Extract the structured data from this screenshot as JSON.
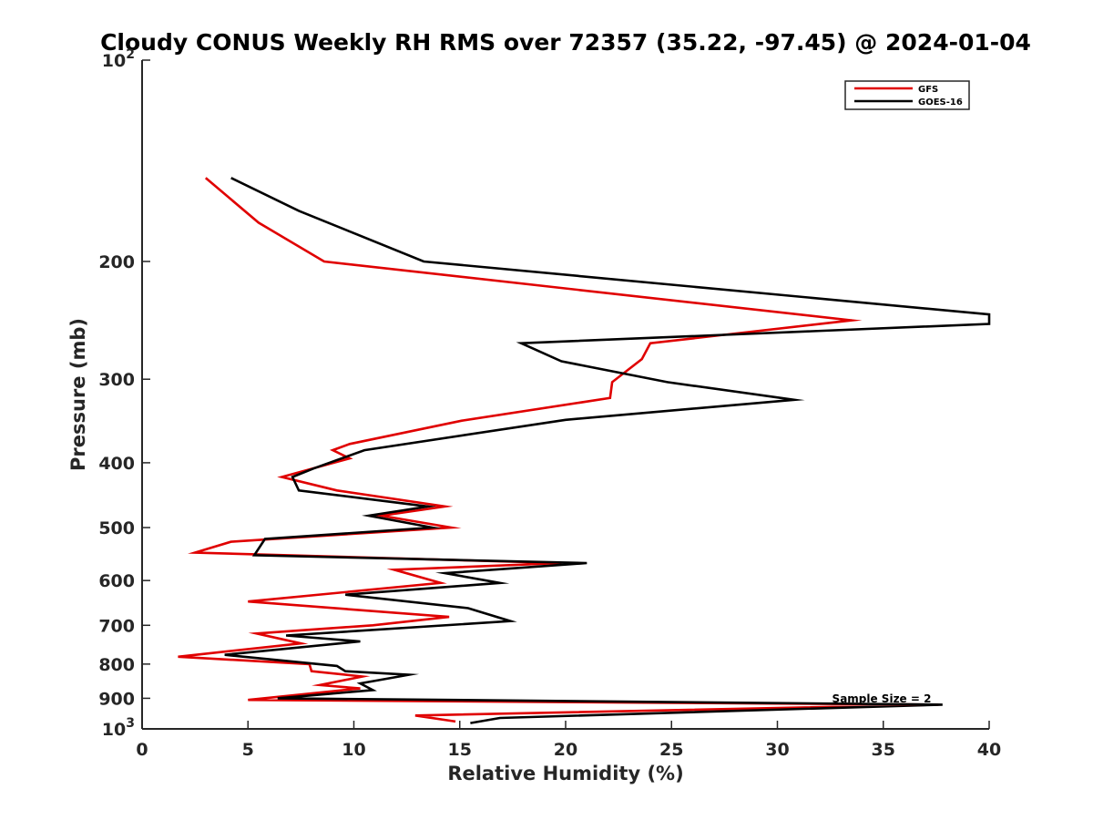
{
  "chart_data": {
    "type": "line",
    "title": "Cloudy CONUS Weekly RH RMS over 72357 (35.22, -97.45) @ 2024-01-04",
    "xlabel": "Relative Humidity (%)",
    "ylabel": "Pressure (mb)",
    "xlim": [
      0,
      40
    ],
    "ylim": [
      100,
      1000
    ],
    "y_scale": "log",
    "y_reversed": true,
    "grid": false,
    "legend_position": "top-right",
    "x_ticks": [
      "0",
      "5",
      "10",
      "15",
      "20",
      "25",
      "30",
      "35",
      "40"
    ],
    "y_ticks": [
      {
        "value": 100,
        "base": "10",
        "exp": "2"
      },
      {
        "value": 200,
        "label": "200"
      },
      {
        "value": 300,
        "label": "300"
      },
      {
        "value": 400,
        "label": "400"
      },
      {
        "value": 500,
        "label": "500"
      },
      {
        "value": 600,
        "label": "600"
      },
      {
        "value": 700,
        "label": "700"
      },
      {
        "value": 800,
        "label": "800"
      },
      {
        "value": 900,
        "label": "900"
      },
      {
        "value": 1000,
        "base": "10",
        "exp": "3"
      }
    ],
    "annotation": "Sample Size = 2",
    "series": [
      {
        "name": "GFS",
        "color": "#e00000",
        "points": [
          [
            3.0,
            150
          ],
          [
            5.5,
            175
          ],
          [
            8.6,
            200
          ],
          [
            33.5,
            245
          ],
          [
            24.0,
            265
          ],
          [
            23.6,
            280
          ],
          [
            22.2,
            303
          ],
          [
            22.1,
            320
          ],
          [
            15.1,
            346
          ],
          [
            9.8,
            375
          ],
          [
            9.0,
            383
          ],
          [
            9.8,
            394
          ],
          [
            6.6,
            420
          ],
          [
            9.2,
            440
          ],
          [
            14.3,
            465
          ],
          [
            11.3,
            480
          ],
          [
            14.6,
            500
          ],
          [
            4.2,
            525
          ],
          [
            2.5,
            545
          ],
          [
            19.8,
            565
          ],
          [
            11.9,
            578
          ],
          [
            14.1,
            605
          ],
          [
            5.0,
            645
          ],
          [
            14.5,
            680
          ],
          [
            10.9,
            700
          ],
          [
            5.4,
            720
          ],
          [
            7.5,
            745
          ],
          [
            1.7,
            780
          ],
          [
            7.9,
            800
          ],
          [
            8.0,
            820
          ],
          [
            10.4,
            835
          ],
          [
            8.4,
            860
          ],
          [
            10.3,
            870
          ],
          [
            5.0,
            905
          ],
          [
            37.6,
            920
          ],
          [
            12.9,
            955
          ],
          [
            14.8,
            975
          ]
        ]
      },
      {
        "name": "GOES-16",
        "color": "#000000",
        "points": [
          [
            4.2,
            150
          ],
          [
            7.4,
            168
          ],
          [
            13.3,
            200
          ],
          [
            40.0,
            240
          ],
          [
            40.0,
            248
          ],
          [
            17.9,
            265
          ],
          [
            19.8,
            282
          ],
          [
            24.8,
            303
          ],
          [
            30.8,
            322
          ],
          [
            20.0,
            345
          ],
          [
            10.5,
            383
          ],
          [
            8.1,
            408
          ],
          [
            7.1,
            420
          ],
          [
            7.4,
            440
          ],
          [
            13.5,
            465
          ],
          [
            10.7,
            480
          ],
          [
            13.7,
            500
          ],
          [
            5.8,
            520
          ],
          [
            5.3,
            550
          ],
          [
            21.0,
            565
          ],
          [
            14.3,
            585
          ],
          [
            16.9,
            605
          ],
          [
            9.6,
            630
          ],
          [
            15.4,
            660
          ],
          [
            17.4,
            690
          ],
          [
            6.8,
            725
          ],
          [
            10.3,
            740
          ],
          [
            3.9,
            775
          ],
          [
            9.2,
            805
          ],
          [
            9.6,
            820
          ],
          [
            12.6,
            830
          ],
          [
            10.3,
            855
          ],
          [
            10.9,
            875
          ],
          [
            6.4,
            900
          ],
          [
            37.8,
            920
          ],
          [
            16.9,
            963
          ],
          [
            15.5,
            980
          ]
        ]
      }
    ]
  }
}
